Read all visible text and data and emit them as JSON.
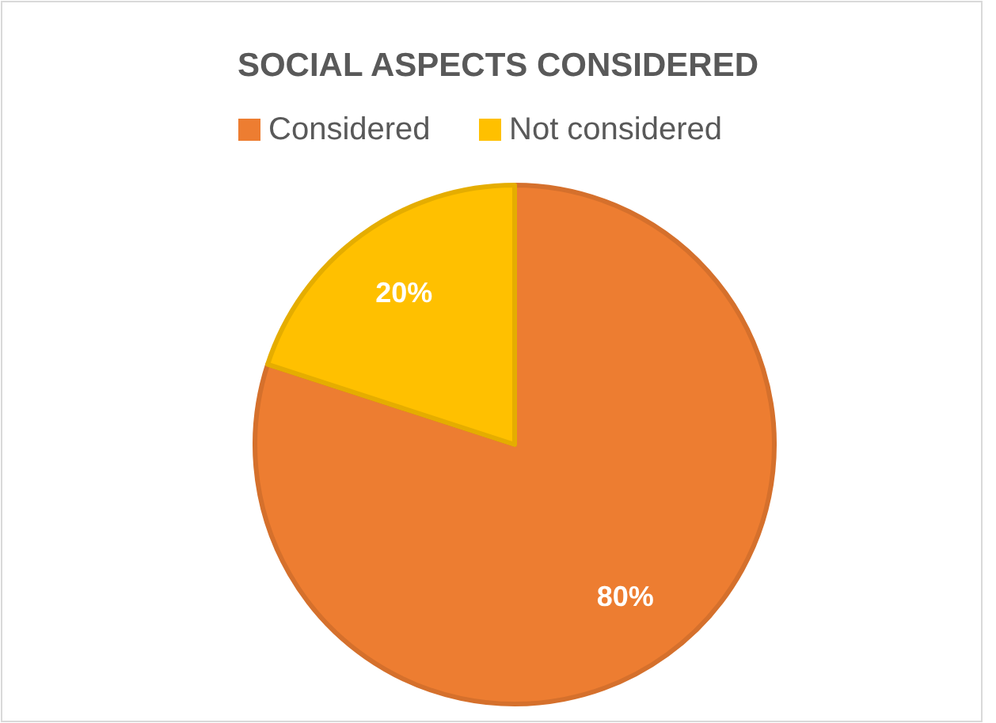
{
  "chart_data": {
    "type": "pie",
    "title": "SOCIAL ASPECTS CONSIDERED",
    "categories": [
      "Considered",
      "Not considered"
    ],
    "values": [
      80,
      20
    ],
    "colors": [
      "#ed7d31",
      "#ffc000"
    ],
    "legend": "top",
    "value_labels": [
      "80%",
      "20%"
    ]
  }
}
